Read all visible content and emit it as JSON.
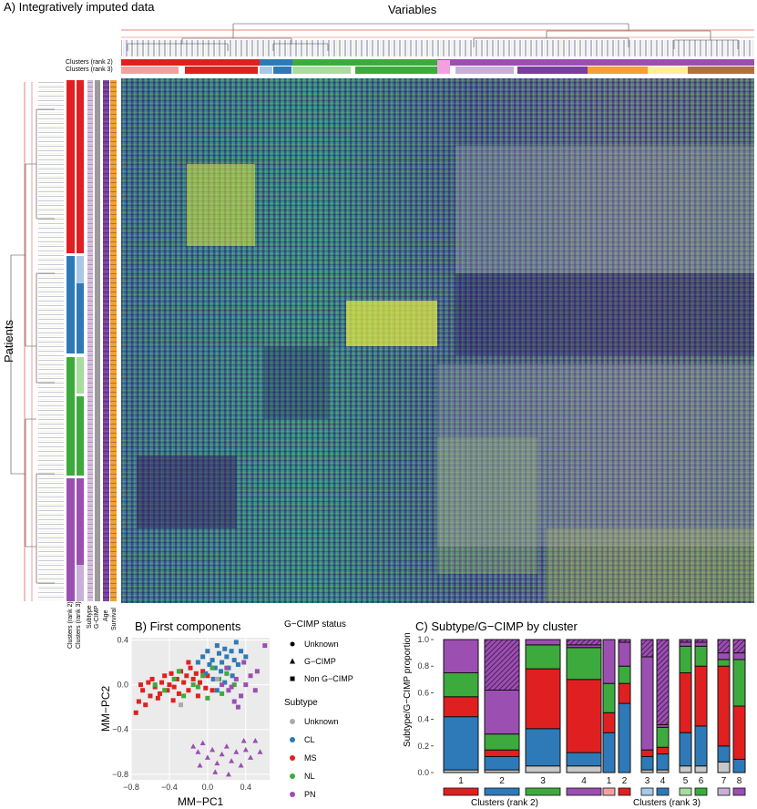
{
  "panelA": {
    "title": "A) Integratively imputed data",
    "variables_label": "Variables",
    "patients_label": "Patients",
    "col_track_labels": [
      "Clusters (rank 2)",
      "Clusters (rank 3)"
    ],
    "row_track_labels": [
      "Clusters (rank 2)",
      "Clusters (rank 3)",
      "Subtype",
      "G-CIMP",
      "Age",
      "Survival"
    ]
  },
  "panelB": {
    "title": "B) First components",
    "gcimp_legend_title": "G−CIMP status",
    "gcimp_legend": [
      {
        "label": "Unknown",
        "shape": "circle"
      },
      {
        "label": "G−CIMP",
        "shape": "triangle"
      },
      {
        "label": "Non G−CIMP",
        "shape": "square"
      }
    ],
    "subtype_legend_title": "Subtype",
    "subtype_legend": [
      {
        "label": "Unknown",
        "color": "#aaaaaa"
      },
      {
        "label": "CL",
        "color": "#2e7ab8"
      },
      {
        "label": "MS",
        "color": "#e02020"
      },
      {
        "label": "NL",
        "color": "#3daa3d"
      },
      {
        "label": "PN",
        "color": "#9b4fb0"
      }
    ]
  },
  "chart_data": [
    {
      "type": "scatter",
      "title": "B) First components",
      "xlabel": "MM−PC1",
      "ylabel": "MM−PC2",
      "xlim": [
        -0.8,
        0.65
      ],
      "ylim": [
        -0.85,
        0.42
      ],
      "xticks": [
        -0.8,
        -0.4,
        0.0,
        0.4
      ],
      "yticks": [
        0.4,
        0.0,
        -0.4,
        -0.8
      ],
      "xtick_labels": [
        "−0.8",
        "−0.4",
        "0.0",
        "0.4"
      ],
      "ytick_labels": [
        "0.4",
        "0.0",
        "−0.4",
        "−0.8"
      ],
      "series": [
        {
          "name": "MS",
          "color": "#e02020",
          "points": [
            [
              -0.75,
              -0.25
            ],
            [
              -0.72,
              -0.15
            ],
            [
              -0.68,
              -0.05
            ],
            [
              -0.62,
              0.02
            ],
            [
              -0.6,
              -0.1
            ],
            [
              -0.58,
              0.05
            ],
            [
              -0.55,
              -0.02
            ],
            [
              -0.5,
              -0.08
            ],
            [
              -0.48,
              0.02
            ],
            [
              -0.45,
              0.08
            ],
            [
              -0.42,
              -0.05
            ],
            [
              -0.4,
              0.0
            ],
            [
              -0.38,
              0.1
            ],
            [
              -0.35,
              -0.02
            ],
            [
              -0.32,
              0.05
            ],
            [
              -0.3,
              -0.08
            ],
            [
              -0.28,
              0.12
            ],
            [
              -0.25,
              0.02
            ],
            [
              -0.22,
              0.08
            ],
            [
              -0.2,
              -0.05
            ],
            [
              -0.18,
              0.15
            ],
            [
              -0.15,
              0.05
            ],
            [
              -0.12,
              0.1
            ],
            [
              -0.1,
              -0.1
            ],
            [
              -0.08,
              0.02
            ],
            [
              -0.05,
              0.12
            ],
            [
              -0.02,
              -0.03
            ],
            [
              0.0,
              0.08
            ],
            [
              -0.65,
              -0.18
            ],
            [
              -0.52,
              -0.12
            ],
            [
              -0.36,
              -0.14
            ],
            [
              -0.2,
              0.2
            ],
            [
              0.05,
              -0.05
            ],
            [
              -0.7,
              0.0
            ]
          ]
        },
        {
          "name": "CL",
          "color": "#2e7ab8",
          "points": [
            [
              -0.1,
              0.2
            ],
            [
              -0.05,
              0.25
            ],
            [
              0.0,
              0.3
            ],
            [
              0.05,
              0.22
            ],
            [
              0.1,
              0.35
            ],
            [
              0.12,
              0.28
            ],
            [
              0.15,
              0.2
            ],
            [
              0.18,
              0.32
            ],
            [
              0.2,
              0.25
            ],
            [
              0.22,
              0.15
            ],
            [
              0.25,
              0.3
            ],
            [
              0.28,
              0.22
            ],
            [
              0.3,
              0.38
            ],
            [
              0.35,
              0.3
            ],
            [
              0.08,
              0.15
            ],
            [
              0.02,
              0.18
            ],
            [
              -0.02,
              0.1
            ],
            [
              0.14,
              0.12
            ],
            [
              0.26,
              0.08
            ],
            [
              0.32,
              0.18
            ],
            [
              0.4,
              0.25
            ],
            [
              0.06,
              0.05
            ],
            [
              0.18,
              0.02
            ],
            [
              0.1,
              -0.05
            ]
          ]
        },
        {
          "name": "NL",
          "color": "#3daa3d",
          "points": [
            [
              -0.55,
              0.0
            ],
            [
              -0.45,
              -0.05
            ],
            [
              -0.35,
              0.05
            ],
            [
              -0.25,
              -0.1
            ],
            [
              -0.15,
              0.0
            ],
            [
              -0.05,
              0.08
            ],
            [
              0.05,
              0.15
            ],
            [
              0.12,
              0.05
            ],
            [
              0.2,
              0.1
            ],
            [
              0.28,
              0.0
            ],
            [
              0.0,
              -0.12
            ],
            [
              -0.3,
              0.12
            ],
            [
              -0.1,
              -0.02
            ],
            [
              0.15,
              -0.08
            ]
          ]
        },
        {
          "name": "PN",
          "color": "#9b4fb0",
          "points": [
            [
              0.15,
              0.0
            ],
            [
              0.22,
              -0.05
            ],
            [
              0.3,
              0.05
            ],
            [
              0.35,
              -0.1
            ],
            [
              0.4,
              0.0
            ],
            [
              0.45,
              0.08
            ],
            [
              0.5,
              -0.05
            ],
            [
              0.52,
              0.12
            ],
            [
              0.28,
              -0.15
            ],
            [
              0.2,
              0.15
            ],
            [
              0.38,
              0.2
            ],
            [
              0.6,
              0.35
            ],
            [
              0.25,
              -0.02
            ],
            [
              0.32,
              -0.2
            ],
            [
              -0.15,
              -0.55
            ],
            [
              -0.1,
              -0.6
            ],
            [
              -0.05,
              -0.52
            ],
            [
              0.0,
              -0.65
            ],
            [
              0.05,
              -0.58
            ],
            [
              0.1,
              -0.7
            ],
            [
              0.15,
              -0.62
            ],
            [
              0.2,
              -0.55
            ],
            [
              0.25,
              -0.68
            ],
            [
              0.3,
              -0.6
            ],
            [
              0.35,
              -0.72
            ],
            [
              0.4,
              -0.58
            ],
            [
              0.45,
              -0.65
            ],
            [
              0.5,
              -0.5
            ],
            [
              0.55,
              -0.6
            ],
            [
              0.08,
              -0.78
            ],
            [
              -0.08,
              -0.72
            ],
            [
              0.22,
              -0.8
            ],
            [
              0.38,
              -0.5
            ]
          ]
        },
        {
          "name": "Unknown",
          "color": "#aaaaaa",
          "points": [
            [
              -0.28,
              -0.18
            ],
            [
              0.1,
              0.05
            ]
          ]
        }
      ]
    },
    {
      "type": "bar",
      "stacked": true,
      "title": "C) Subtype/G−CIMP by cluster",
      "ylabel": "Subtype/G−CIMP proportion",
      "xlabel": "Clusters (rank 2)",
      "ylim": [
        0,
        1
      ],
      "yticks": [
        0.0,
        0.2,
        0.4,
        0.6,
        0.8,
        1.0
      ],
      "categories": [
        "1",
        "2",
        "3",
        "4"
      ],
      "cluster_colors": [
        "#e02020",
        "#2e7ab8",
        "#3daa3d",
        "#9b4fb0"
      ],
      "segment_order": [
        "Unknown",
        "CL",
        "MS",
        "NL",
        "PN",
        "G−CIMP"
      ],
      "segment_colors": {
        "Unknown": "#c8c8c8",
        "CL": "#2e7ab8",
        "MS": "#e02020",
        "NL": "#3daa3d",
        "PN": "#9b4fb0",
        "G−CIMP": "#6a2a78"
      },
      "series": [
        {
          "name": "Unknown",
          "values": [
            0.02,
            0.02,
            0.05,
            0.05
          ]
        },
        {
          "name": "CL",
          "values": [
            0.4,
            0.1,
            0.28,
            0.1
          ]
        },
        {
          "name": "MS",
          "values": [
            0.15,
            0.05,
            0.45,
            0.55
          ]
        },
        {
          "name": "NL",
          "values": [
            0.18,
            0.12,
            0.18,
            0.24
          ]
        },
        {
          "name": "PN",
          "values": [
            0.25,
            0.33,
            0.04,
            0.02
          ]
        },
        {
          "name": "G−CIMP",
          "values": [
            0.0,
            0.38,
            0.0,
            0.04
          ]
        }
      ]
    },
    {
      "type": "bar",
      "stacked": true,
      "xlabel": "Clusters (rank 3)",
      "ylim": [
        0,
        1
      ],
      "categories": [
        "1",
        "2",
        "3",
        "4",
        "5",
        "6",
        "7",
        "8"
      ],
      "cluster_colors": [
        "#f4a0a0",
        "#e02020",
        "#a8c8e8",
        "#2e7ab8",
        "#a8dca0",
        "#3daa3d",
        "#c8b0d8",
        "#9b4fb0"
      ],
      "segment_order": [
        "Unknown",
        "CL",
        "MS",
        "NL",
        "PN",
        "G−CIMP"
      ],
      "segment_colors": {
        "Unknown": "#c8c8c8",
        "CL": "#2e7ab8",
        "MS": "#e02020",
        "NL": "#3daa3d",
        "PN": "#9b4fb0",
        "G−CIMP": "#6a2a78"
      },
      "series": [
        {
          "name": "Unknown",
          "values": [
            0.0,
            0.0,
            0.02,
            0.02,
            0.05,
            0.05,
            0.08,
            0.0
          ]
        },
        {
          "name": "CL",
          "values": [
            0.3,
            0.52,
            0.1,
            0.12,
            0.25,
            0.3,
            0.12,
            0.1
          ]
        },
        {
          "name": "MS",
          "values": [
            0.15,
            0.15,
            0.05,
            0.05,
            0.45,
            0.45,
            0.6,
            0.4
          ]
        },
        {
          "name": "NL",
          "values": [
            0.22,
            0.13,
            0.0,
            0.15,
            0.2,
            0.15,
            0.05,
            0.35
          ]
        },
        {
          "name": "PN",
          "values": [
            0.33,
            0.18,
            0.7,
            0.02,
            0.03,
            0.03,
            0.05,
            0.05
          ]
        },
        {
          "name": "G−CIMP",
          "values": [
            0.0,
            0.02,
            0.13,
            0.64,
            0.02,
            0.02,
            0.1,
            0.1
          ]
        }
      ]
    }
  ]
}
